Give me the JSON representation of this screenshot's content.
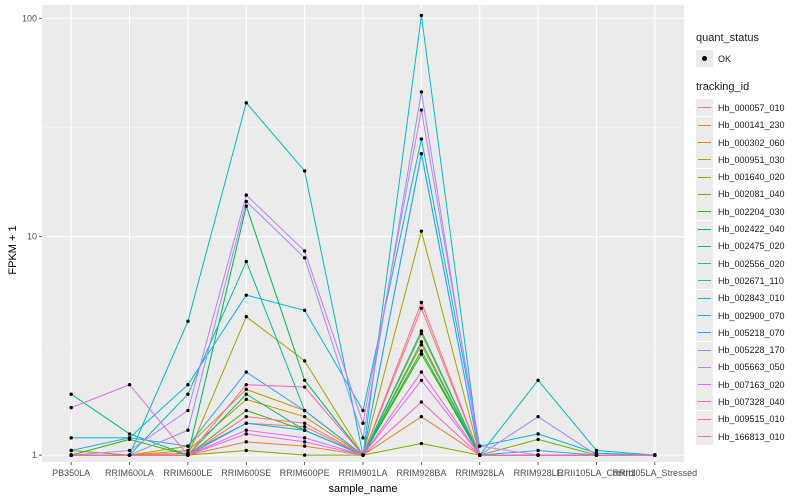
{
  "chart_data": {
    "type": "line",
    "xlabel": "sample_name",
    "ylabel": "FPKM + 1",
    "y_scale": "log10",
    "ylim": [
      0.93,
      115
    ],
    "y_ticks": [
      1,
      10,
      100
    ],
    "y_tick_labels": [
      "1",
      "10",
      "100"
    ],
    "categories": [
      "PB350LA",
      "RRIM600LA",
      "RRIM600LE",
      "RRIM600SE",
      "RRIM600PE",
      "RRIM901LA",
      "RRIM928BA",
      "RRIM928LA",
      "RRIM928LE",
      "RRII105LA_Control",
      "RRII105LA_Stressed"
    ],
    "x_tick_labels": [
      "PB350LA",
      "RRIM600LA",
      "RRIM600LE",
      "RRIM600SE",
      "RRIM600PE",
      "RRIM901LA",
      "RRIM928BA",
      "RRIM928LA",
      "RRIM928LE",
      "RRII105LA_Control",
      "RRII105LA_Stressed"
    ],
    "grid": true,
    "legend_position": "right",
    "legend_shape_title": "quant_status",
    "legend_shape_entries": [
      "OK"
    ],
    "legend_color_title": "tracking_id",
    "series": [
      {
        "name": "Hb_000057_010",
        "color": "#F8766D",
        "values": [
          1.0,
          1.0,
          1.02,
          1.4,
          1.35,
          1.0,
          4.7,
          1.0,
          1.0,
          1.0,
          1.0
        ]
      },
      {
        "name": "Hb_000141_230",
        "color": "#EA8331",
        "values": [
          1.0,
          1.0,
          1.0,
          1.15,
          1.1,
          1.0,
          1.5,
          1.0,
          1.0,
          1.0,
          1.0
        ]
      },
      {
        "name": "Hb_000302_060",
        "color": "#D89000",
        "values": [
          1.0,
          1.0,
          1.05,
          1.8,
          1.5,
          1.0,
          3.2,
          1.0,
          1.0,
          1.0,
          1.0
        ]
      },
      {
        "name": "Hb_000951_030",
        "color": "#C09B00",
        "values": [
          1.0,
          1.0,
          1.1,
          2.0,
          1.6,
          1.0,
          3.6,
          1.0,
          1.0,
          1.0,
          1.0
        ]
      },
      {
        "name": "Hb_001640_020",
        "color": "#A3A500",
        "values": [
          1.0,
          1.0,
          1.0,
          4.3,
          2.7,
          1.0,
          10.6,
          1.0,
          1.0,
          1.0,
          1.0
        ]
      },
      {
        "name": "Hb_002081_040",
        "color": "#7CAE00",
        "values": [
          1.05,
          1.0,
          1.0,
          1.05,
          1.0,
          1.0,
          1.13,
          1.0,
          1.18,
          1.0,
          1.0
        ]
      },
      {
        "name": "Hb_002204_030",
        "color": "#39B600",
        "values": [
          1.0,
          1.18,
          1.0,
          1.6,
          1.3,
          1.0,
          2.9,
          1.0,
          1.0,
          1.0,
          1.0
        ]
      },
      {
        "name": "Hb_002422_040",
        "color": "#00BB4E",
        "values": [
          1.0,
          1.0,
          1.0,
          13.8,
          2.2,
          1.0,
          3.0,
          1.0,
          1.0,
          1.0,
          1.0
        ]
      },
      {
        "name": "Hb_002475_020",
        "color": "#00BF7D",
        "values": [
          1.9,
          1.25,
          1.0,
          1.9,
          1.3,
          1.0,
          3.3,
          1.0,
          1.0,
          1.0,
          1.0
        ]
      },
      {
        "name": "Hb_002556_020",
        "color": "#00C1A3",
        "values": [
          1.0,
          1.0,
          1.9,
          7.7,
          1.6,
          1.0,
          3.7,
          1.0,
          1.0,
          1.0,
          1.0
        ]
      },
      {
        "name": "Hb_002671_110",
        "color": "#00BFC4",
        "values": [
          1.0,
          1.0,
          4.1,
          41,
          20,
          1.0,
          103,
          1.0,
          2.2,
          1.05,
          1.0
        ]
      },
      {
        "name": "Hb_002843_010",
        "color": "#00BAE0",
        "values": [
          1.2,
          1.2,
          2.1,
          5.4,
          4.6,
          1.6,
          28,
          1.1,
          1.25,
          1.02,
          1.0
        ]
      },
      {
        "name": "Hb_002900_070",
        "color": "#00B0F6",
        "values": [
          1.0,
          1.0,
          1.0,
          1.4,
          1.3,
          1.0,
          24,
          1.0,
          1.0,
          1.0,
          1.0
        ]
      },
      {
        "name": "Hb_005218_070",
        "color": "#35A2FF",
        "values": [
          1.05,
          1.2,
          1.1,
          2.4,
          1.6,
          1.0,
          24,
          1.0,
          1.05,
          1.0,
          1.0
        ]
      },
      {
        "name": "Hb_005228_170",
        "color": "#9590FF",
        "values": [
          1.0,
          1.0,
          1.3,
          14.5,
          8.0,
          1.2,
          46,
          1.0,
          1.5,
          1.0,
          1.0
        ]
      },
      {
        "name": "Hb_005663_050",
        "color": "#C77CFF",
        "values": [
          1.0,
          1.05,
          1.6,
          15.5,
          8.6,
          1.4,
          38,
          1.1,
          1.0,
          1.0,
          1.0
        ]
      },
      {
        "name": "Hb_007163_020",
        "color": "#E76BF3",
        "values": [
          1.65,
          2.1,
          1.0,
          1.3,
          1.2,
          1.0,
          2.2,
          1.0,
          1.0,
          1.0,
          1.0
        ]
      },
      {
        "name": "Hb_007328_040",
        "color": "#FA62DB",
        "values": [
          1.0,
          1.0,
          1.0,
          1.25,
          1.15,
          1.0,
          2.4,
          1.0,
          1.0,
          1.0,
          1.0
        ]
      },
      {
        "name": "Hb_009515_010",
        "color": "#FF62BC",
        "values": [
          1.0,
          1.0,
          1.0,
          2.1,
          2.05,
          1.0,
          1.75,
          1.0,
          1.0,
          1.0,
          1.0
        ]
      },
      {
        "name": "Hb_166813_010",
        "color": "#FF6C91",
        "values": [
          1.0,
          1.0,
          1.0,
          1.5,
          1.4,
          1.0,
          5.0,
          1.0,
          1.0,
          1.0,
          1.0
        ]
      }
    ]
  }
}
